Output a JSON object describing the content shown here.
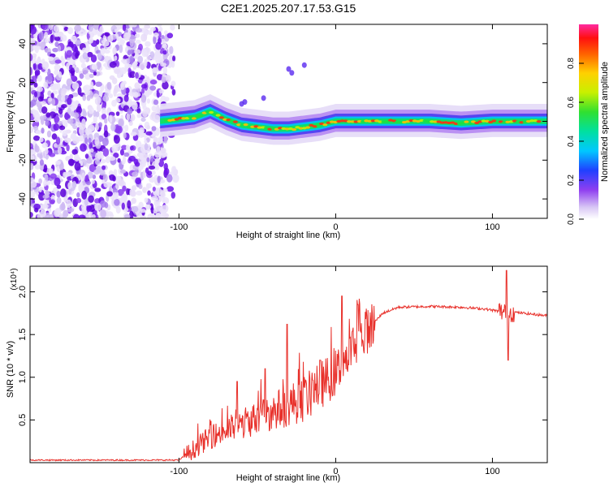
{
  "title": "C2E1.2025.207.17.53.G15",
  "chart_data": [
    {
      "type": "heatmap",
      "xlabel": "Height of straight line (km)",
      "ylabel": "Frequency (Hz)",
      "xlim": [
        -195,
        135
      ],
      "ylim": [
        -50,
        50
      ],
      "xticks": [
        -100,
        0,
        100
      ],
      "yticks": [
        -40,
        -20,
        0,
        20,
        40
      ],
      "colorbar": {
        "label": "Normalized spectral amplitude",
        "range": [
          0,
          1
        ],
        "ticks": [
          "0.0",
          "0.2",
          "0.4",
          "0.6",
          "0.8"
        ]
      },
      "description_points": {
        "noise_region_x": [
          -195,
          -108
        ],
        "signal_onset_x": -112,
        "ridge": [
          {
            "x": -112,
            "y": 0
          },
          {
            "x": -100,
            "y": 1
          },
          {
            "x": -90,
            "y": 2
          },
          {
            "x": -80,
            "y": 5
          },
          {
            "x": -70,
            "y": 1
          },
          {
            "x": -60,
            "y": -2
          },
          {
            "x": -50,
            "y": -3
          },
          {
            "x": -40,
            "y": -4
          },
          {
            "x": -30,
            "y": -4
          },
          {
            "x": -20,
            "y": -3
          },
          {
            "x": -10,
            "y": -2
          },
          {
            "x": 0,
            "y": 0
          },
          {
            "x": 20,
            "y": 0
          },
          {
            "x": 40,
            "y": 0
          },
          {
            "x": 60,
            "y": 0
          },
          {
            "x": 80,
            "y": -1
          },
          {
            "x": 100,
            "y": 0
          },
          {
            "x": 135,
            "y": 0
          }
        ]
      }
    },
    {
      "type": "line",
      "xlabel": "Height of straight line (km)",
      "ylabel": "SNR (10 * v/v)",
      "yunit": "(x10⁴)",
      "xlim": [
        -195,
        135
      ],
      "ylim": [
        0,
        2.3
      ],
      "xticks": [
        -100,
        0,
        100
      ],
      "yticks": [
        0.5,
        1.0,
        1.5,
        2.0
      ],
      "ytick_labels": [
        "0.5",
        "1.0",
        "1.5",
        "2.0"
      ],
      "color": "#e8302a",
      "envelope": [
        {
          "x": -195,
          "y": 0.03
        },
        {
          "x": -100,
          "y": 0.03
        },
        {
          "x": -95,
          "y": 0.1
        },
        {
          "x": -80,
          "y": 0.3
        },
        {
          "x": -60,
          "y": 0.45
        },
        {
          "x": -40,
          "y": 0.6
        },
        {
          "x": -20,
          "y": 0.75
        },
        {
          "x": 0,
          "y": 1.05
        },
        {
          "x": 10,
          "y": 1.3
        },
        {
          "x": 20,
          "y": 1.55
        },
        {
          "x": 30,
          "y": 1.75
        },
        {
          "x": 40,
          "y": 1.82
        },
        {
          "x": 60,
          "y": 1.83
        },
        {
          "x": 80,
          "y": 1.82
        },
        {
          "x": 95,
          "y": 1.8
        },
        {
          "x": 105,
          "y": 1.77
        },
        {
          "x": 115,
          "y": 1.76
        },
        {
          "x": 135,
          "y": 1.72
        }
      ],
      "spikes": [
        {
          "x": -63,
          "y": 0.95
        },
        {
          "x": -45,
          "y": 1.1
        },
        {
          "x": -31,
          "y": 1.62
        },
        {
          "x": -10,
          "y": 1.2
        },
        {
          "x": 4,
          "y": 1.95
        },
        {
          "x": 14,
          "y": 1.85
        },
        {
          "x": 109,
          "y": 2.25
        },
        {
          "x": 110,
          "y": 1.2
        }
      ]
    }
  ]
}
